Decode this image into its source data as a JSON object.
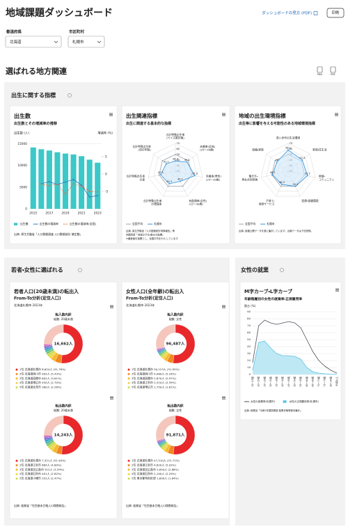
{
  "header": {
    "title": "地域課題ダッシュボード",
    "guide_link": "ダッシュボードの見方 (PDF)",
    "print_button": "印刷"
  },
  "filters": {
    "prefecture_label": "都道府県",
    "prefecture": "北海道",
    "city_label": "市区町村",
    "city": "札幌市"
  },
  "section": {
    "title": "選ばれる地方関連",
    "icons": [
      "PNG",
      "PDF"
    ]
  },
  "panels": {
    "birth": "出生に関する指標",
    "youth": "若者・女性に選ばれる",
    "work": "女性の就業"
  },
  "chart_data": [
    {
      "type": "bar",
      "title": "出生数",
      "subtitle": "出生数とその増減率の推移",
      "y_label": "出生数 (人)",
      "y2_label": "増減率 (%)",
      "categories": [
        "2015",
        null,
        "2017",
        null,
        "2019",
        null,
        "2021",
        null,
        "2023"
      ],
      "series": [
        {
          "name": "出生数",
          "type": "bar",
          "color": "#3cc8c8",
          "values": [
            14100,
            13700,
            13400,
            13000,
            12700,
            12500,
            12100,
            11300,
            10600
          ]
        },
        {
          "name": "出生数の増減率",
          "type": "line",
          "axis": "y2",
          "color": "#3a7bbf",
          "values": [
            null,
            -2.8,
            -2.2,
            -3.0,
            -2.3,
            -1.6,
            -3.2,
            -6.6,
            -6.2
          ]
        },
        {
          "name": "出生数の増減率(全国)",
          "type": "line",
          "axis": "y2",
          "dash": true,
          "color": "#e8704a",
          "values": [
            null,
            -2.9,
            -3.4,
            -2.9,
            -5.8,
            -2.8,
            -3.5,
            -5.0,
            -5.1
          ]
        }
      ],
      "ylim": [
        0,
        16000
      ],
      "yticks": [
        0,
        5000,
        10000,
        15000
      ],
      "y2lim": [
        -10,
        10
      ],
      "y2ticks": [
        -5,
        0,
        5
      ],
      "grid": true,
      "source": "出典: 厚生労働省「人口動態調査 人口動態統計 確定数」"
    },
    {
      "type": "radar",
      "title": "出生関連指標",
      "subtitle": "出生に関連する基本的な指標",
      "axes": [
        [
          "合計特殊出生率",
          "(ベイズ推計値)"
        ],
        [
          "未婚率(全体)",
          "(25〜39歳)"
        ],
        [
          "未婚率(男性)",
          "(25〜39歳)"
        ],
        [
          "有配偶率(女性)",
          "(15〜49歳)"
        ],
        [
          "合計特殊出生率",
          "の増減率"
        ],
        [
          "合計特殊出生率",
          "の差"
        ],
        [
          "合計特殊出生率",
          "(母の年齢)"
        ]
      ],
      "rlim": [
        20,
        70
      ],
      "rticks": [
        20,
        30,
        40,
        50,
        60,
        70
      ],
      "series": [
        {
          "name": "全国平均",
          "color": "#9aa3ad",
          "values": [
            50,
            50,
            50,
            50,
            50,
            50,
            50
          ]
        },
        {
          "name": "札幌市",
          "color": "#2f8fd8",
          "fill": "#cfe6fa",
          "data_labels": true,
          "values": [
            38.4,
            46.5,
            55.9,
            40.1,
            45.1,
            47.3,
            41.2
          ]
        }
      ],
      "source": [
        "出典: 厚生労働省「人口動態統計特殊報告」等",
        "内閣官房「地域少子化・働き方指標」",
        "※偏差値を指標とし、全国平均を50としています"
      ]
    },
    {
      "type": "radar",
      "title": "地域の出生環境指標",
      "subtitle": "出生等に影響を与える可能性のある地域環境指標",
      "axes": [
        [
          "若い世代の生活環境"
        ],
        [
          "家族・住生活"
        ],
        [
          "地域・",
          "コミュニティ"
        ],
        [
          "医療・保健環境"
        ],
        [
          "子育て・",
          "保育サービス"
        ],
        [
          "働き方・",
          "男女共同参画"
        ],
        [
          "結婚・家族"
        ]
      ],
      "rlim": [
        20,
        70
      ],
      "rticks": [
        20,
        30,
        40,
        50,
        60,
        70
      ],
      "series": [
        {
          "name": "全国平均",
          "color": "#9aa3ad",
          "values": [
            50,
            50,
            50,
            50,
            50,
            50,
            50
          ]
        },
        {
          "name": "札幌市",
          "color": "#2f8fd8",
          "fill": "#cfe6fa",
          "data_labels": true,
          "values": [
            58.1,
            52.4,
            55.7,
            50.2,
            46.3,
            48.7,
            46.0
          ]
        }
      ],
      "source": [
        "出典: 各種公開データを基に集計しています。出典データは下記参照。"
      ]
    },
    {
      "type": "donut",
      "title": "若者人口(20歳未満)の転出入",
      "subtitle": "From-To分析(定住人口)",
      "caption": "北海道札幌市 2023年",
      "colors": [
        "#e8282b",
        "#f08a24",
        "#f5b82e",
        "#f2d64b",
        "#c9dc4f",
        "#7cc56f",
        "#3fb6a8",
        "#3a8fd4",
        "#6a63c9",
        "#a35bc4",
        "#d65ca6",
        "#f5c6bc"
      ],
      "donuts": [
        {
          "heading": "転入数内訳",
          "subheading": "総数: 20歳未満",
          "center_label": "16,662人",
          "values": [
            8624,
            905,
            602,
            450,
            380,
            330,
            290,
            260,
            230,
            200,
            180,
            4211
          ],
          "labels": [
            "1位 北海道札幌市 8,624人 (51.76%)",
            "2位 北海道旭川市 905人 (5.43%)",
            "3位 北海道函館市 602人 (3.61%)",
            "4位 北海道帯広市 450人 (2.70%)",
            "5位 北海道北見市 380人 (2.28%)",
            null,
            null,
            null,
            null,
            null,
            null,
            null
          ]
        },
        {
          "heading": "転出数内訳",
          "subheading": "総数: 20歳未満",
          "center_label": "14,243人",
          "values": [
            7321,
            684,
            512,
            401,
            352,
            300,
            270,
            240,
            210,
            190,
            170,
            3593
          ],
          "labels": [
            "1位 北海道札幌市 7,321人 (51.40%)",
            "2位 北海道江別市 684人 (4.80%)",
            "3位 北海道北広島市 512人 (3.59%)",
            "4位 北海道石狩市 401人 (2.82%)",
            "5位 北海道小樽市 352人 (2.47%)",
            null,
            null,
            null,
            null,
            null,
            null,
            null
          ]
        }
      ],
      "source": "出典: 総務省「住民基本台帳人口移動報告」"
    },
    {
      "type": "donut",
      "title": "女性人口(全年齢)の転出入",
      "subtitle": "From-To分析(定住人口)",
      "caption": "北海道札幌市 2023年",
      "colors": [
        "#e8282b",
        "#f08a24",
        "#f5b82e",
        "#f2d64b",
        "#c9dc4f",
        "#7cc56f",
        "#3fb6a8",
        "#3a8fd4",
        "#6a63c9",
        "#a35bc4",
        "#d65ca6",
        "#f5c6bc"
      ],
      "donuts": [
        {
          "heading": "転入数内訳",
          "subheading": "総数: 女性",
          "center_label": "96,487人",
          "values": [
            50123,
            4980,
            2870,
            2310,
            1750,
            1500,
            1300,
            1100,
            950,
            800,
            700,
            28104
          ],
          "labels": [
            "1位 北海道札幌市 50,123人 (51.95%)",
            "2位 北海道旭川市 4,980人 (5.16%)",
            "3位 北海道函館市 2,870人 (2.97%)",
            "4位 北海道江別市 2,310人 (2.39%)",
            "5位 北海道帯広市 1,750人 (1.81%)",
            null,
            null,
            null,
            null,
            null,
            null,
            null
          ]
        },
        {
          "heading": "転出数内訳",
          "subheading": "総数: 女性",
          "center_label": "91,871人",
          "values": [
            47510,
            4620,
            2650,
            2100,
            1690,
            1450,
            1250,
            1050,
            900,
            780,
            660,
            27211
          ],
          "labels": [
            "1位 北海道札幌市 47,510人 (51.71%)",
            "2位 北海道江別市 4,620人 (5.03%)",
            "3位 北海道北広島市 2,650人 (2.88%)",
            "4位 北海道石狩市 2,100人 (2.29%)",
            "5位 東京都特別区部 1,690人 (1.84%)",
            null,
            null,
            null,
            null,
            null,
            null,
            null
          ]
        }
      ],
      "source": "出典: 総務省「住民基本台帳人口移動報告」"
    },
    {
      "type": "line",
      "title": "M字カーブ・L字カーブ",
      "subtitle": "年齢階層別の女性の就業率・正規雇用率",
      "y_label": "割合 (%)",
      "categories": [
        "15〜19歳",
        "20〜24歳",
        "25〜29歳",
        "30〜34歳",
        "35〜39歳",
        "40〜44歳",
        "45〜49歳",
        "50〜54歳",
        "55〜59歳",
        "60〜64歳",
        "65〜69歳",
        "70〜74歳",
        "75〜79歳",
        "80〜84歳",
        "85歳以上"
      ],
      "series": [
        {
          "name": "女性の就業率(札幌市)",
          "color": "#4a4f57",
          "values": [
            17,
            70,
            78,
            74,
            72,
            74,
            76,
            74,
            67,
            50,
            33,
            20,
            12,
            6,
            2
          ]
        },
        {
          "name": "女性の正規雇用率(札幌市)",
          "color": "#5cc4e8",
          "fill": "#bfe8f5",
          "area": true,
          "values": [
            6,
            46,
            48,
            38,
            30,
            27,
            27,
            26,
            22,
            10,
            4,
            2,
            1,
            0.5,
            0.2
          ]
        }
      ],
      "ylim": [
        0,
        90
      ],
      "yticks": [
        0,
        10,
        20,
        30,
        40,
        50,
        60,
        70,
        80,
        90
      ],
      "grid": true,
      "source": "出典: 総務省「令和2年国勢調査 就業状態等基本集計」"
    }
  ]
}
